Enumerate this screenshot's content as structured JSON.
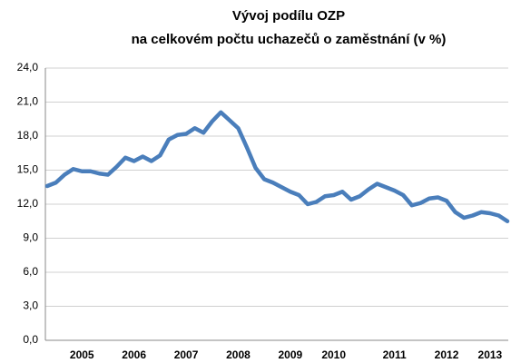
{
  "chart_data": {
    "type": "line",
    "title": [
      "Vývoj podílu OZP",
      "na celkovém počtu uchazečů o zaměstnání (v %)"
    ],
    "categories": [
      null,
      null,
      null,
      null,
      "2005",
      null,
      null,
      null,
      null,
      null,
      "2006",
      null,
      null,
      null,
      null,
      null,
      "2007",
      null,
      null,
      null,
      null,
      null,
      "2008",
      null,
      null,
      null,
      null,
      null,
      "2009",
      null,
      null,
      null,
      null,
      "2010",
      null,
      null,
      null,
      null,
      null,
      null,
      "2011",
      null,
      null,
      null,
      null,
      null,
      "2012",
      null,
      null,
      null,
      null,
      "2013",
      null,
      null
    ],
    "values": [
      13.6,
      13.9,
      14.6,
      15.1,
      14.9,
      14.9,
      14.7,
      14.6,
      15.3,
      16.1,
      15.8,
      16.2,
      15.8,
      16.3,
      17.7,
      18.1,
      18.2,
      18.7,
      18.3,
      19.3,
      20.1,
      19.4,
      18.7,
      17.0,
      15.2,
      14.2,
      13.9,
      13.5,
      13.1,
      12.8,
      12.0,
      12.2,
      12.7,
      12.8,
      13.1,
      12.4,
      12.7,
      13.3,
      13.8,
      13.5,
      13.2,
      12.8,
      11.9,
      12.1,
      12.5,
      12.6,
      12.3,
      11.3,
      10.8,
      11.0,
      11.3,
      11.2,
      11.0,
      10.5
    ],
    "color": "#4a7ebb",
    "ylim": [
      0,
      24
    ],
    "yticks": [
      {
        "value": 0,
        "label": "0,0"
      },
      {
        "value": 3,
        "label": "3,0"
      },
      {
        "value": 6,
        "label": "6,0"
      },
      {
        "value": 9,
        "label": "9,0"
      },
      {
        "value": 12,
        "label": "12,0"
      },
      {
        "value": 15,
        "label": "15,0"
      },
      {
        "value": 18,
        "label": "18,0"
      },
      {
        "value": 21,
        "label": "21,0"
      },
      {
        "value": 24,
        "label": "24,0"
      }
    ],
    "grid": true
  }
}
